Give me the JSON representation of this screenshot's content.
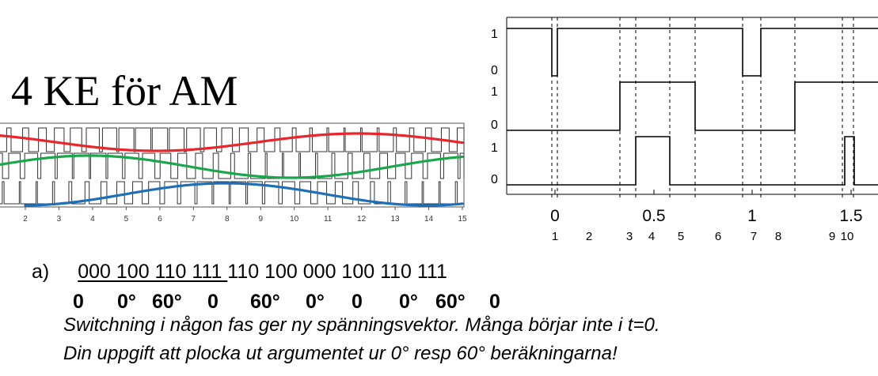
{
  "title": "4 KE för AM",
  "left_chart": {
    "x_ticks": [
      "2",
      "3",
      "4",
      "5",
      "6",
      "7",
      "8",
      "9",
      "10",
      "11",
      "12",
      "13",
      "14",
      "15"
    ],
    "colors": {
      "red": "#e8262b",
      "green": "#1aa64a",
      "blue": "#1e6fb8"
    }
  },
  "right_chart": {
    "y_labels": [
      {
        "high": "1",
        "low": "0"
      },
      {
        "high": "1",
        "low": "0"
      },
      {
        "high": "1",
        "low": "0"
      }
    ],
    "x_ticks": [
      "0",
      "0.5",
      "1",
      "1.5"
    ],
    "interval_labels": [
      "1",
      "2",
      "3",
      "4",
      "5",
      "6",
      "7",
      "8",
      "9",
      "10"
    ]
  },
  "answer": {
    "label": "a)",
    "bits_underlined": "000 100 110 111 ",
    "bits_rest": "110 100 000 100 110 111",
    "angles": [
      "0",
      "0°",
      "60°",
      "0",
      "60°",
      "0°",
      "0",
      "0°",
      "60°",
      "0"
    ],
    "note_line1": "Switchning i någon fas ger ny spänningsvektor. Många börjar inte i t=0.",
    "note_line2": "Din uppgift att plocka ut argumentet ur 0° resp 60° beräkningarna!"
  }
}
